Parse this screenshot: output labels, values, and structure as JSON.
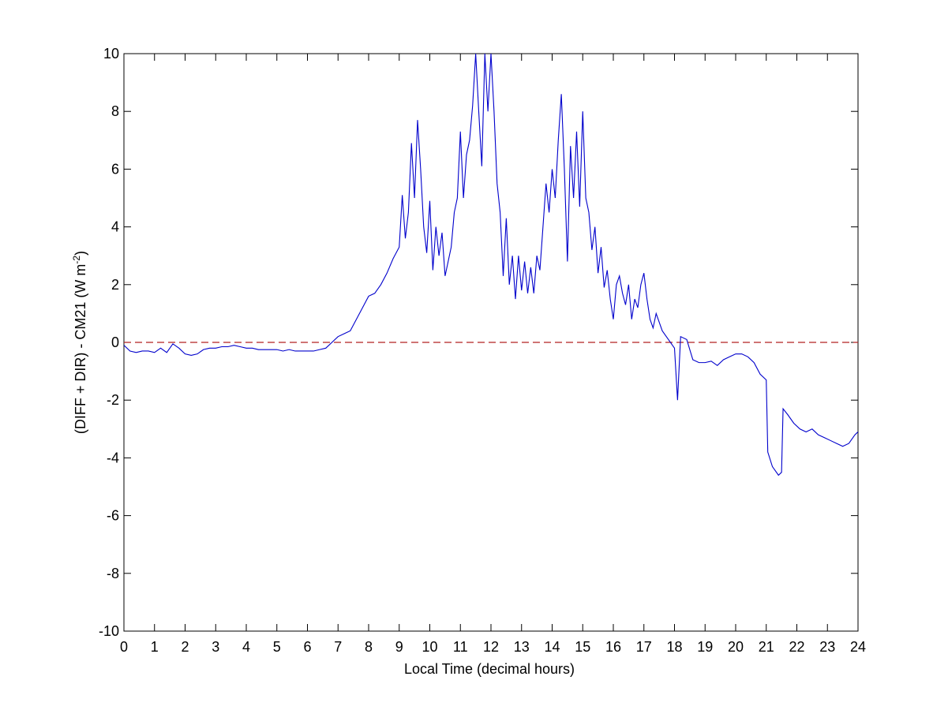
{
  "chart_data": {
    "type": "line",
    "xlabel": "Local Time (decimal hours)",
    "ylabel": {
      "text": "(DIFF + DIR) - CM21 (W m",
      "superscript": "-2",
      "suffix": ")"
    },
    "x": [
      0,
      0.2,
      0.4,
      0.6,
      0.8,
      1.0,
      1.2,
      1.4,
      1.6,
      1.8,
      2.0,
      2.2,
      2.4,
      2.6,
      2.8,
      3.0,
      3.2,
      3.4,
      3.6,
      3.8,
      4.0,
      4.2,
      4.4,
      4.6,
      4.8,
      5.0,
      5.2,
      5.4,
      5.6,
      5.8,
      6.0,
      6.2,
      6.4,
      6.6,
      6.8,
      7.0,
      7.2,
      7.4,
      7.6,
      7.8,
      8.0,
      8.2,
      8.4,
      8.6,
      8.8,
      9.0,
      9.1,
      9.2,
      9.3,
      9.4,
      9.5,
      9.6,
      9.7,
      9.8,
      9.9,
      10.0,
      10.1,
      10.2,
      10.3,
      10.4,
      10.5,
      10.6,
      10.7,
      10.8,
      10.9,
      11.0,
      11.1,
      11.2,
      11.3,
      11.4,
      11.5,
      11.6,
      11.7,
      11.8,
      11.9,
      12.0,
      12.1,
      12.2,
      12.3,
      12.4,
      12.5,
      12.6,
      12.7,
      12.8,
      12.9,
      13.0,
      13.1,
      13.2,
      13.3,
      13.4,
      13.5,
      13.6,
      13.7,
      13.8,
      13.9,
      14.0,
      14.1,
      14.2,
      14.3,
      14.4,
      14.5,
      14.6,
      14.7,
      14.8,
      14.9,
      15.0,
      15.1,
      15.2,
      15.3,
      15.4,
      15.5,
      15.6,
      15.7,
      15.8,
      15.9,
      16.0,
      16.1,
      16.2,
      16.3,
      16.4,
      16.5,
      16.6,
      16.7,
      16.8,
      16.9,
      17.0,
      17.1,
      17.2,
      17.3,
      17.4,
      17.6,
      17.8,
      18.0,
      18.1,
      18.2,
      18.4,
      18.6,
      18.8,
      19.0,
      19.2,
      19.4,
      19.6,
      19.8,
      20.0,
      20.2,
      20.4,
      20.6,
      20.8,
      21.0,
      21.05,
      21.2,
      21.4,
      21.5,
      21.55,
      21.7,
      21.9,
      22.1,
      22.3,
      22.5,
      22.7,
      22.9,
      23.1,
      23.3,
      23.5,
      23.7,
      23.9,
      24.0
    ],
    "series": [
      {
        "color": "#0000cc",
        "values": [
          -0.1,
          -0.3,
          -0.35,
          -0.3,
          -0.3,
          -0.35,
          -0.2,
          -0.35,
          -0.05,
          -0.2,
          -0.4,
          -0.45,
          -0.4,
          -0.25,
          -0.2,
          -0.2,
          -0.15,
          -0.15,
          -0.1,
          -0.15,
          -0.2,
          -0.2,
          -0.25,
          -0.25,
          -0.25,
          -0.25,
          -0.3,
          -0.25,
          -0.3,
          -0.3,
          -0.3,
          -0.3,
          -0.25,
          -0.2,
          0,
          0.2,
          0.3,
          0.4,
          0.8,
          1.2,
          1.6,
          1.7,
          2.0,
          2.4,
          2.9,
          3.3,
          5.1,
          3.6,
          4.5,
          6.9,
          5.0,
          7.7,
          6.0,
          4.0,
          3.1,
          4.9,
          2.5,
          4.0,
          3.0,
          3.8,
          2.3,
          2.8,
          3.3,
          4.5,
          5.0,
          7.3,
          5.0,
          6.5,
          7.0,
          8.2,
          10.0,
          8.0,
          6.1,
          10.0,
          8.0,
          10.0,
          8.0,
          5.5,
          4.5,
          2.3,
          4.3,
          2.0,
          3.0,
          1.5,
          3.0,
          1.8,
          2.8,
          1.7,
          2.6,
          1.7,
          3.0,
          2.5,
          4.0,
          5.5,
          4.5,
          6.0,
          5.0,
          7.0,
          8.6,
          6.0,
          2.8,
          6.8,
          5.0,
          7.3,
          4.7,
          8.0,
          5.0,
          4.5,
          3.2,
          4.0,
          2.4,
          3.3,
          1.9,
          2.5,
          1.5,
          0.8,
          2.0,
          2.3,
          1.7,
          1.3,
          2.0,
          0.8,
          1.5,
          1.2,
          2.0,
          2.4,
          1.5,
          0.8,
          0.5,
          1.0,
          0.4,
          0.1,
          -0.2,
          -2.0,
          0.2,
          0.1,
          -0.6,
          -0.7,
          -0.7,
          -0.65,
          -0.8,
          -0.6,
          -0.5,
          -0.4,
          -0.4,
          -0.5,
          -0.7,
          -1.1,
          -1.3,
          -3.8,
          -4.3,
          -4.6,
          -4.5,
          -2.3,
          -2.5,
          -2.8,
          -3.0,
          -3.1,
          -3.0,
          -3.2,
          -3.3,
          -3.4,
          -3.5,
          -3.6,
          -3.5,
          -3.2,
          -3.1
        ]
      }
    ],
    "reference_line": {
      "value": 0,
      "color": "#b22222"
    },
    "xlim": [
      0,
      24
    ],
    "xticks": [
      0,
      1,
      2,
      3,
      4,
      5,
      6,
      7,
      8,
      9,
      10,
      11,
      12,
      13,
      14,
      15,
      16,
      17,
      18,
      19,
      20,
      21,
      22,
      23,
      24
    ],
    "ylim": [
      -10,
      10
    ],
    "yticks": [
      -10,
      -8,
      -6,
      -4,
      -2,
      0,
      2,
      4,
      6,
      8,
      10
    ]
  }
}
